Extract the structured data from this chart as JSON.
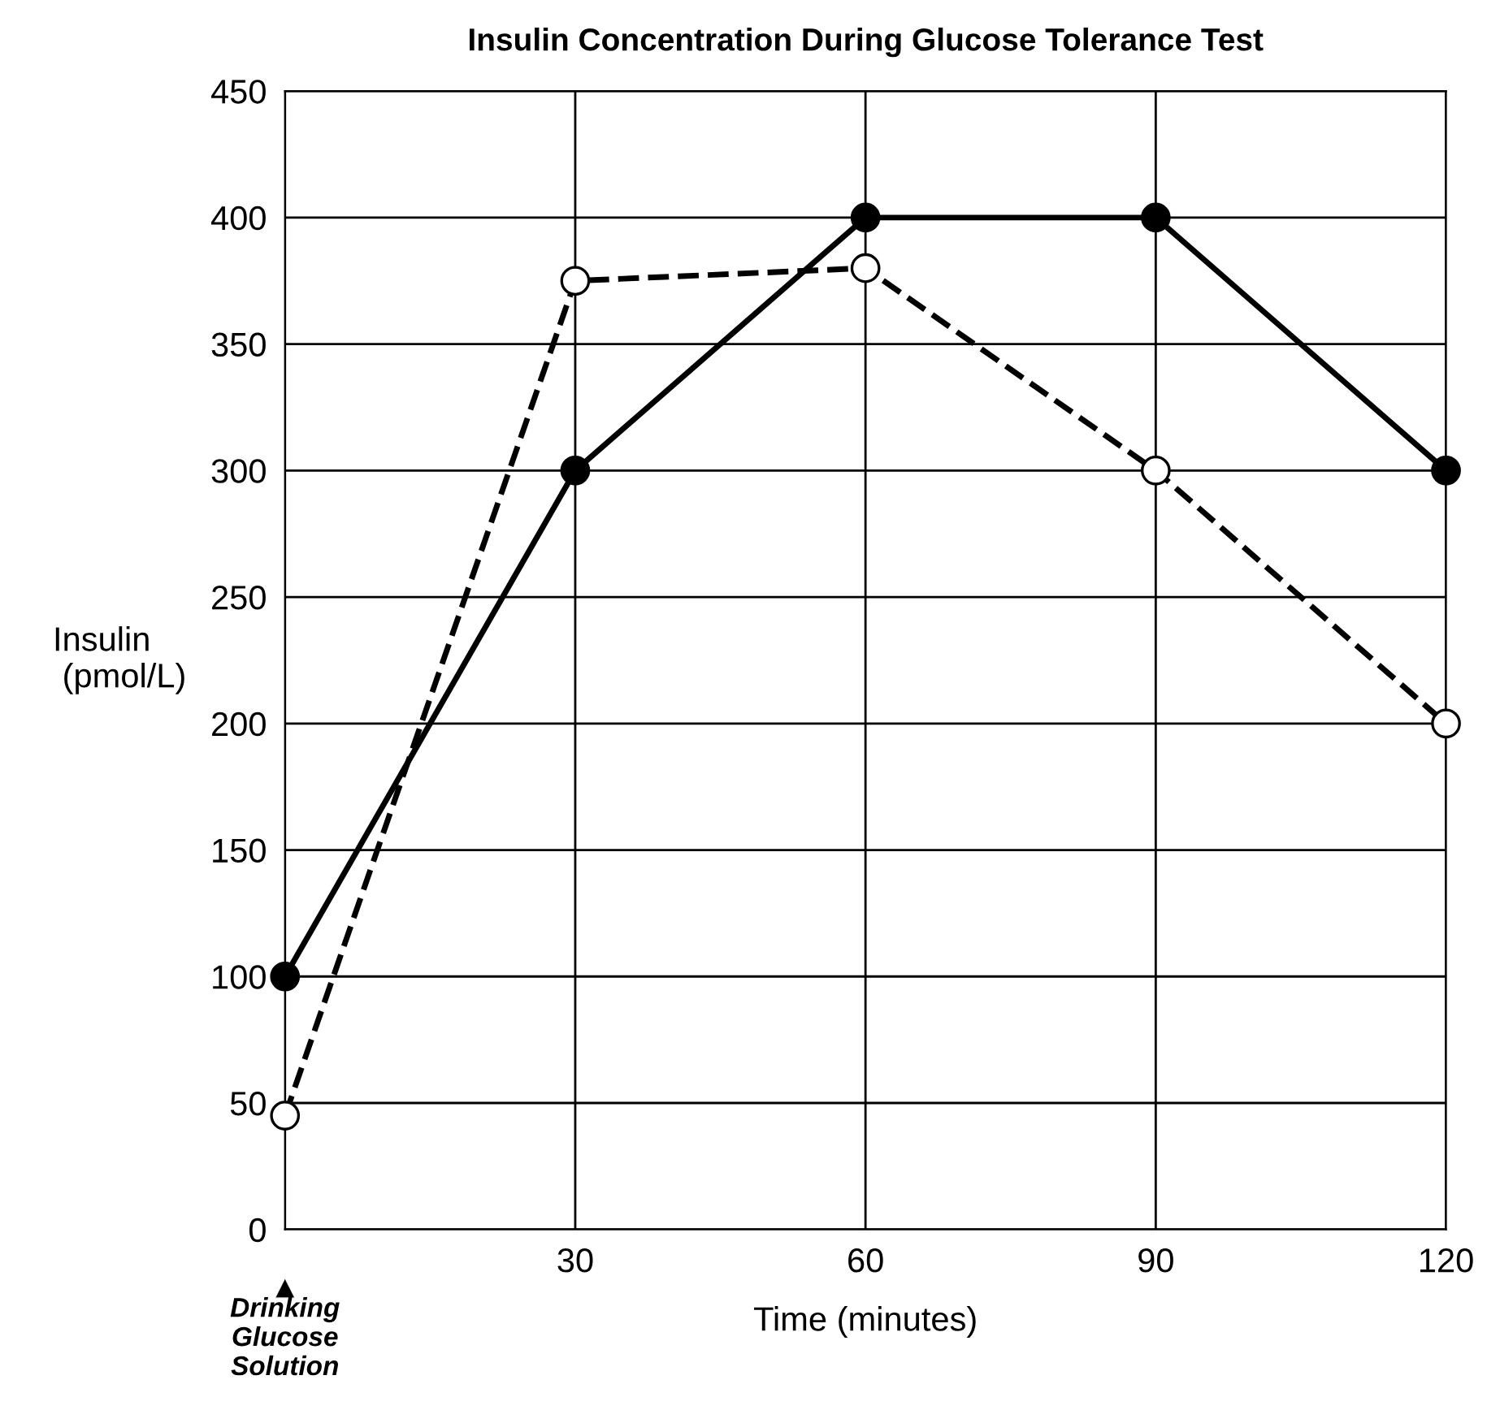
{
  "chart_data": {
    "type": "line",
    "title": "Insulin Concentration During Glucose Tolerance Test",
    "xlabel": "Time (minutes)",
    "ylabel": "Insulin\n (pmol/L)",
    "x": [
      0,
      30,
      60,
      90,
      120
    ],
    "series": [
      {
        "color": "#000000",
        "values": [
          100,
          300,
          400,
          400,
          300
        ],
        "line_style": "solid",
        "marker": "circle"
      },
      {
        "color": "#000000",
        "values": [
          45,
          375,
          380,
          300,
          200
        ],
        "line_style": "dashed",
        "marker": "circle"
      }
    ],
    "xlim": [
      0,
      120
    ],
    "xticks": [
      {
        "value": 0,
        "label": null
      },
      30,
      60,
      90,
      120
    ],
    "ylim": [
      0,
      450
    ],
    "yticks": [
      0,
      50,
      100,
      150,
      200,
      250,
      300,
      350,
      400,
      450
    ],
    "grid": true,
    "legend": false,
    "annotations": [
      "Drinking\nGlucose\nSolution"
    ]
  }
}
